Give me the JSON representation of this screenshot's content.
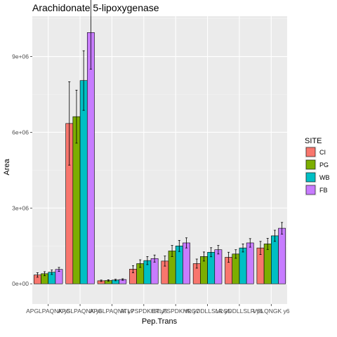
{
  "chart_data": {
    "type": "bar",
    "title": "Arachidonate 5-lipoxygenase",
    "xlabel": "Pep.Trans",
    "ylabel": "Area",
    "ylim": [
      -800000,
      10600000
    ],
    "yticks": [
      0,
      3000000,
      6000000,
      9000000
    ],
    "ytick_labels": [
      "0e+00",
      "3e+06",
      "6e+06",
      "9e+06"
    ],
    "categories": [
      "APGLPAQNK y5",
      "APGLPAQNK y6",
      "APGLPAQNK y7",
      "ATLPSPDKHR y5",
      "ETLPSPDKHR y7",
      "VLGDDLLSLR y5",
      "VLGDDLLSLR y6",
      "VSLQNGK y6"
    ],
    "xtick_labels": [
      "APGLPAQNK y5",
      "APGLPAQNK y6",
      "APGLPAQNK y7",
      "ATLPSPDKHR y5",
      "ETLPSPDKHR y7",
      "VLGDDLLSLR y5",
      "VLGDDLLSLR y6",
      "VSLQNGK y6"
    ],
    "legend": {
      "title": "SITE",
      "position": "right"
    },
    "grid": true,
    "series": [
      {
        "name": "CI",
        "color": "#F8766D",
        "values": [
          350000,
          6350000,
          120000,
          580000,
          900000,
          800000,
          1050000,
          1420000
        ],
        "errors": [
          90000,
          1650000,
          30000,
          140000,
          200000,
          180000,
          200000,
          260000
        ]
      },
      {
        "name": "PG",
        "color": "#7CAE00",
        "values": [
          400000,
          6620000,
          130000,
          800000,
          1300000,
          1080000,
          1180000,
          1580000
        ],
        "errors": [
          80000,
          1050000,
          30000,
          150000,
          220000,
          180000,
          170000,
          220000
        ]
      },
      {
        "name": "WB",
        "color": "#00BFC4",
        "values": [
          460000,
          8050000,
          150000,
          920000,
          1500000,
          1250000,
          1420000,
          1900000
        ],
        "errors": [
          90000,
          1180000,
          30000,
          160000,
          220000,
          180000,
          160000,
          220000
        ]
      },
      {
        "name": "FB",
        "color": "#C77CFF",
        "values": [
          570000,
          9950000,
          170000,
          1000000,
          1620000,
          1350000,
          1620000,
          2200000
        ],
        "errors": [
          80000,
          1450000,
          30000,
          140000,
          200000,
          170000,
          170000,
          230000
        ]
      }
    ]
  }
}
